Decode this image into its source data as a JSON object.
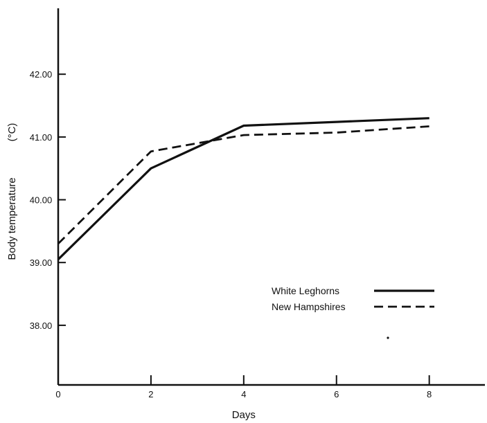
{
  "chart_data": {
    "type": "line",
    "title": "",
    "xlabel": "Days",
    "ylabel": "Body temperature",
    "ylabel_unit": "(°C)",
    "xlim": [
      0,
      9.2
    ],
    "ylim": [
      37.05,
      43.05
    ],
    "x_ticks": [
      0,
      2,
      4,
      6,
      8
    ],
    "x_tick_labels": [
      "0",
      "2",
      "4",
      "6",
      "8"
    ],
    "y_ticks": [
      38.0,
      39.0,
      40.0,
      41.0,
      42.0
    ],
    "y_tick_labels": [
      "38.00",
      "39.00",
      "40.00",
      "41.00",
      "42.00"
    ],
    "grid": false,
    "legend_position": "lower-right",
    "series": [
      {
        "name": "White Leghorns",
        "style": "solid",
        "x": [
          0,
          2,
          4,
          6,
          8
        ],
        "y": [
          39.05,
          40.5,
          41.18,
          41.24,
          41.3
        ]
      },
      {
        "name": "New Hampshires",
        "style": "dashed",
        "x": [
          0,
          2,
          4,
          6,
          8
        ],
        "y": [
          39.3,
          40.77,
          41.03,
          41.07,
          41.17
        ]
      }
    ]
  },
  "colors": {
    "line": "#111111",
    "background": "#ffffff"
  }
}
